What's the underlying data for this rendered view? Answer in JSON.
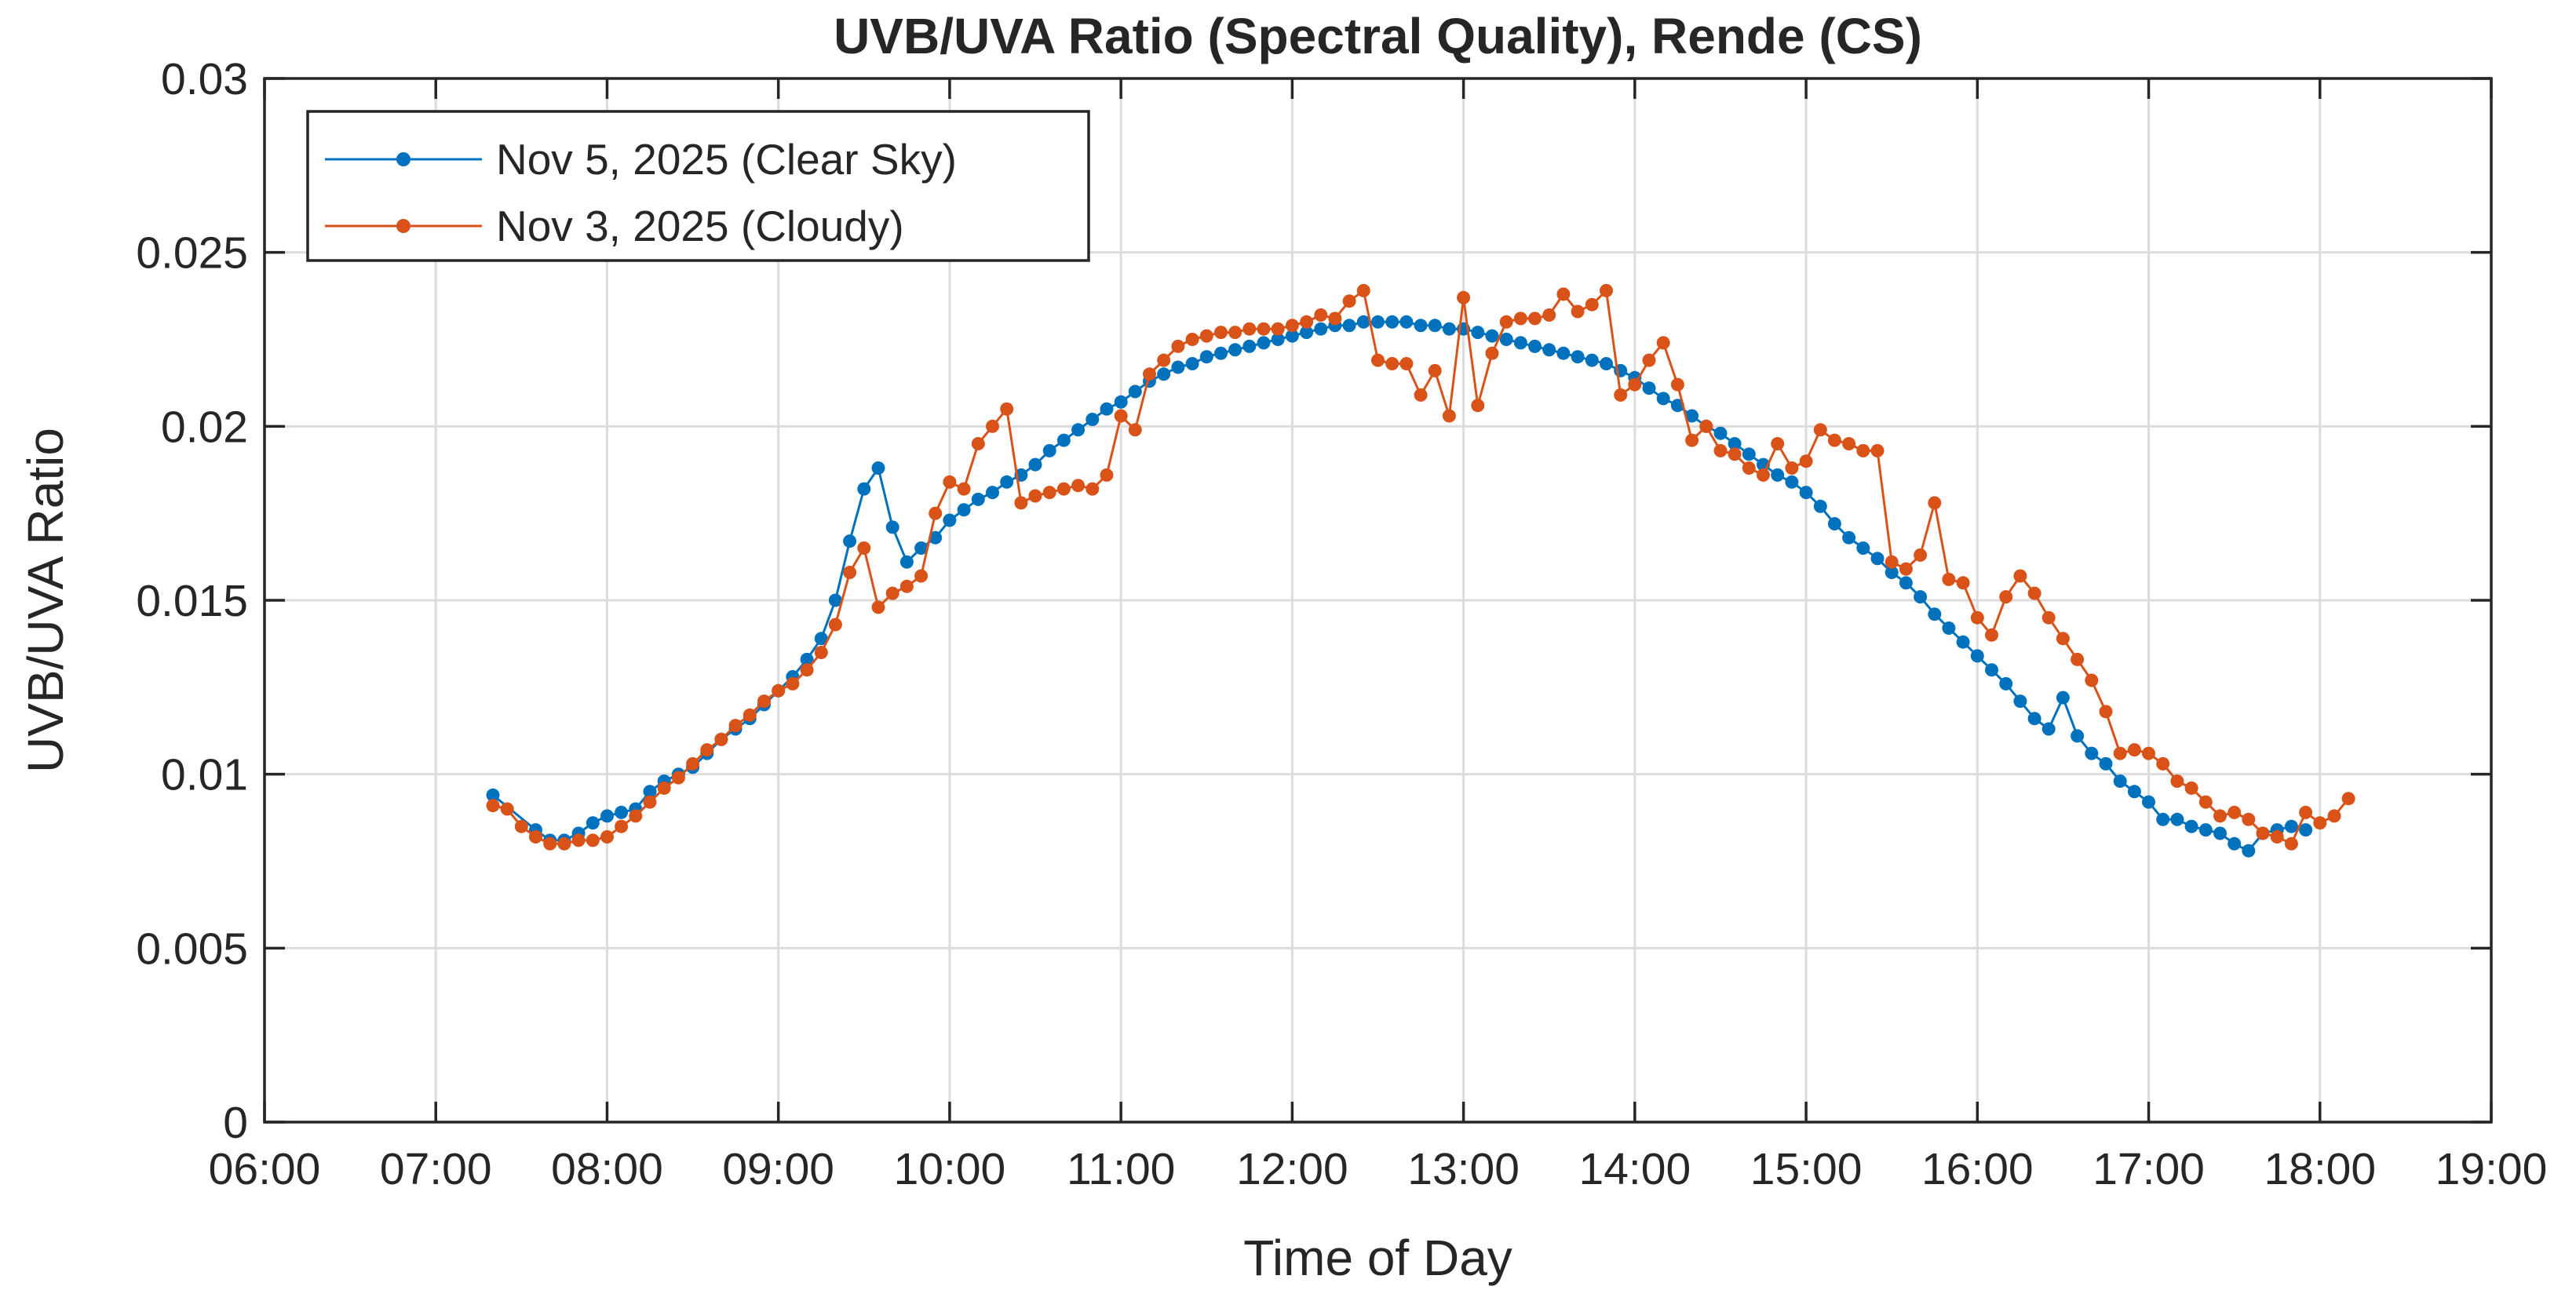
{
  "chart_data": {
    "type": "line",
    "title": "UVB/UVA Ratio (Spectral Quality), Rende (CS)",
    "xlabel": "Time of Day",
    "ylabel": "UVB/UVA Ratio",
    "xlim": [
      "06:00",
      "19:00"
    ],
    "ylim": [
      0,
      0.03
    ],
    "xticks": [
      "06:00",
      "07:00",
      "08:00",
      "09:00",
      "10:00",
      "11:00",
      "12:00",
      "13:00",
      "14:00",
      "15:00",
      "16:00",
      "17:00",
      "18:00",
      "19:00"
    ],
    "yticks": [
      "0",
      "0.005",
      "0.01",
      "0.015",
      "0.02",
      "0.025",
      "0.03"
    ],
    "grid": true,
    "legend_position": "top-left",
    "series": [
      {
        "name": "Nov 5, 2025 (Clear Sky)",
        "color": "#0072BD",
        "points": [
          [
            "07:20",
            0.0094
          ],
          [
            "07:35",
            0.0084
          ],
          [
            "07:40",
            0.0081
          ],
          [
            "07:45",
            0.0081
          ],
          [
            "07:50",
            0.0083
          ],
          [
            "07:55",
            0.0086
          ],
          [
            "08:00",
            0.0088
          ],
          [
            "08:05",
            0.0089
          ],
          [
            "08:10",
            0.009
          ],
          [
            "08:15",
            0.0095
          ],
          [
            "08:20",
            0.0098
          ],
          [
            "08:25",
            0.01
          ],
          [
            "08:30",
            0.0102
          ],
          [
            "08:35",
            0.0106
          ],
          [
            "08:40",
            0.011
          ],
          [
            "08:45",
            0.0113
          ],
          [
            "08:50",
            0.0116
          ],
          [
            "08:55",
            0.012
          ],
          [
            "09:00",
            0.0124
          ],
          [
            "09:05",
            0.0128
          ],
          [
            "09:10",
            0.0133
          ],
          [
            "09:15",
            0.0139
          ],
          [
            "09:20",
            0.015
          ],
          [
            "09:25",
            0.0167
          ],
          [
            "09:30",
            0.0182
          ],
          [
            "09:35",
            0.0188
          ],
          [
            "09:40",
            0.0171
          ],
          [
            "09:45",
            0.0161
          ],
          [
            "09:50",
            0.0165
          ],
          [
            "09:55",
            0.0168
          ],
          [
            "10:00",
            0.0173
          ],
          [
            "10:05",
            0.0176
          ],
          [
            "10:10",
            0.0179
          ],
          [
            "10:15",
            0.0181
          ],
          [
            "10:20",
            0.0184
          ],
          [
            "10:25",
            0.0186
          ],
          [
            "10:30",
            0.0189
          ],
          [
            "10:35",
            0.0193
          ],
          [
            "10:40",
            0.0196
          ],
          [
            "10:45",
            0.0199
          ],
          [
            "10:50",
            0.0202
          ],
          [
            "10:55",
            0.0205
          ],
          [
            "11:00",
            0.0207
          ],
          [
            "11:05",
            0.021
          ],
          [
            "11:10",
            0.0213
          ],
          [
            "11:15",
            0.0215
          ],
          [
            "11:20",
            0.0217
          ],
          [
            "11:25",
            0.0218
          ],
          [
            "11:30",
            0.022
          ],
          [
            "11:35",
            0.0221
          ],
          [
            "11:40",
            0.0222
          ],
          [
            "11:45",
            0.0223
          ],
          [
            "11:50",
            0.0224
          ],
          [
            "11:55",
            0.0225
          ],
          [
            "12:00",
            0.0226
          ],
          [
            "12:05",
            0.0227
          ],
          [
            "12:10",
            0.0228
          ],
          [
            "12:15",
            0.0229
          ],
          [
            "12:20",
            0.0229
          ],
          [
            "12:25",
            0.023
          ],
          [
            "12:30",
            0.023
          ],
          [
            "12:35",
            0.023
          ],
          [
            "12:40",
            0.023
          ],
          [
            "12:45",
            0.0229
          ],
          [
            "12:50",
            0.0229
          ],
          [
            "12:55",
            0.0228
          ],
          [
            "13:00",
            0.0228
          ],
          [
            "13:05",
            0.0227
          ],
          [
            "13:10",
            0.0226
          ],
          [
            "13:15",
            0.0225
          ],
          [
            "13:20",
            0.0224
          ],
          [
            "13:25",
            0.0223
          ],
          [
            "13:30",
            0.0222
          ],
          [
            "13:35",
            0.0221
          ],
          [
            "13:40",
            0.022
          ],
          [
            "13:45",
            0.0219
          ],
          [
            "13:50",
            0.0218
          ],
          [
            "13:55",
            0.0216
          ],
          [
            "14:00",
            0.0214
          ],
          [
            "14:05",
            0.0211
          ],
          [
            "14:10",
            0.0208
          ],
          [
            "14:15",
            0.0206
          ],
          [
            "14:20",
            0.0203
          ],
          [
            "14:25",
            0.02
          ],
          [
            "14:30",
            0.0198
          ],
          [
            "14:35",
            0.0195
          ],
          [
            "14:40",
            0.0192
          ],
          [
            "14:45",
            0.0189
          ],
          [
            "14:50",
            0.0186
          ],
          [
            "14:55",
            0.0184
          ],
          [
            "15:00",
            0.0181
          ],
          [
            "15:05",
            0.0177
          ],
          [
            "15:10",
            0.0172
          ],
          [
            "15:15",
            0.0168
          ],
          [
            "15:20",
            0.0165
          ],
          [
            "15:25",
            0.0162
          ],
          [
            "15:30",
            0.0158
          ],
          [
            "15:35",
            0.0155
          ],
          [
            "15:40",
            0.0151
          ],
          [
            "15:45",
            0.0146
          ],
          [
            "15:50",
            0.0142
          ],
          [
            "15:55",
            0.0138
          ],
          [
            "16:00",
            0.0134
          ],
          [
            "16:05",
            0.013
          ],
          [
            "16:10",
            0.0126
          ],
          [
            "16:15",
            0.0121
          ],
          [
            "16:20",
            0.0116
          ],
          [
            "16:25",
            0.0113
          ],
          [
            "16:30",
            0.0122
          ],
          [
            "16:35",
            0.0111
          ],
          [
            "16:40",
            0.0106
          ],
          [
            "16:45",
            0.0103
          ],
          [
            "16:50",
            0.0098
          ],
          [
            "16:55",
            0.0095
          ],
          [
            "17:00",
            0.0092
          ],
          [
            "17:05",
            0.0087
          ],
          [
            "17:10",
            0.0087
          ],
          [
            "17:15",
            0.0085
          ],
          [
            "17:20",
            0.0084
          ],
          [
            "17:25",
            0.0083
          ],
          [
            "17:30",
            0.008
          ],
          [
            "17:35",
            0.0078
          ],
          [
            "17:40",
            0.0083
          ],
          [
            "17:45",
            0.0084
          ],
          [
            "17:50",
            0.0085
          ],
          [
            "17:55",
            0.0084
          ]
        ]
      },
      {
        "name": "Nov 3, 2025 (Cloudy)",
        "color": "#D95319",
        "points": [
          [
            "07:20",
            0.0091
          ],
          [
            "07:25",
            0.009
          ],
          [
            "07:30",
            0.0085
          ],
          [
            "07:35",
            0.0082
          ],
          [
            "07:40",
            0.008
          ],
          [
            "07:45",
            0.008
          ],
          [
            "07:50",
            0.0081
          ],
          [
            "07:55",
            0.0081
          ],
          [
            "08:00",
            0.0082
          ],
          [
            "08:05",
            0.0085
          ],
          [
            "08:10",
            0.0088
          ],
          [
            "08:15",
            0.0092
          ],
          [
            "08:20",
            0.0096
          ],
          [
            "08:25",
            0.0099
          ],
          [
            "08:30",
            0.0103
          ],
          [
            "08:35",
            0.0107
          ],
          [
            "08:40",
            0.011
          ],
          [
            "08:45",
            0.0114
          ],
          [
            "08:50",
            0.0117
          ],
          [
            "08:55",
            0.0121
          ],
          [
            "09:00",
            0.0124
          ],
          [
            "09:05",
            0.0126
          ],
          [
            "09:10",
            0.013
          ],
          [
            "09:15",
            0.0135
          ],
          [
            "09:20",
            0.0143
          ],
          [
            "09:25",
            0.0158
          ],
          [
            "09:30",
            0.0165
          ],
          [
            "09:35",
            0.0148
          ],
          [
            "09:40",
            0.0152
          ],
          [
            "09:45",
            0.0154
          ],
          [
            "09:50",
            0.0157
          ],
          [
            "09:55",
            0.0175
          ],
          [
            "10:00",
            0.0184
          ],
          [
            "10:05",
            0.0182
          ],
          [
            "10:10",
            0.0195
          ],
          [
            "10:15",
            0.02
          ],
          [
            "10:20",
            0.0205
          ],
          [
            "10:25",
            0.0178
          ],
          [
            "10:30",
            0.018
          ],
          [
            "10:35",
            0.0181
          ],
          [
            "10:40",
            0.0182
          ],
          [
            "10:45",
            0.0183
          ],
          [
            "10:50",
            0.0182
          ],
          [
            "10:55",
            0.0186
          ],
          [
            "11:00",
            0.0203
          ],
          [
            "11:05",
            0.0199
          ],
          [
            "11:10",
            0.0215
          ],
          [
            "11:15",
            0.0219
          ],
          [
            "11:20",
            0.0223
          ],
          [
            "11:25",
            0.0225
          ],
          [
            "11:30",
            0.0226
          ],
          [
            "11:35",
            0.0227
          ],
          [
            "11:40",
            0.0227
          ],
          [
            "11:45",
            0.0228
          ],
          [
            "11:50",
            0.0228
          ],
          [
            "11:55",
            0.0228
          ],
          [
            "12:00",
            0.0229
          ],
          [
            "12:05",
            0.023
          ],
          [
            "12:10",
            0.0232
          ],
          [
            "12:15",
            0.0231
          ],
          [
            "12:20",
            0.0236
          ],
          [
            "12:25",
            0.0239
          ],
          [
            "12:30",
            0.0219
          ],
          [
            "12:35",
            0.0218
          ],
          [
            "12:40",
            0.0218
          ],
          [
            "12:45",
            0.0209
          ],
          [
            "12:50",
            0.0216
          ],
          [
            "12:55",
            0.0203
          ],
          [
            "13:00",
            0.0237
          ],
          [
            "13:05",
            0.0206
          ],
          [
            "13:10",
            0.0221
          ],
          [
            "13:15",
            0.023
          ],
          [
            "13:20",
            0.0231
          ],
          [
            "13:25",
            0.0231
          ],
          [
            "13:30",
            0.0232
          ],
          [
            "13:35",
            0.0238
          ],
          [
            "13:40",
            0.0233
          ],
          [
            "13:45",
            0.0235
          ],
          [
            "13:50",
            0.0239
          ],
          [
            "13:55",
            0.0209
          ],
          [
            "14:00",
            0.0212
          ],
          [
            "14:05",
            0.0219
          ],
          [
            "14:10",
            0.0224
          ],
          [
            "14:15",
            0.0212
          ],
          [
            "14:20",
            0.0196
          ],
          [
            "14:25",
            0.02
          ],
          [
            "14:30",
            0.0193
          ],
          [
            "14:35",
            0.0192
          ],
          [
            "14:40",
            0.0188
          ],
          [
            "14:45",
            0.0186
          ],
          [
            "14:50",
            0.0195
          ],
          [
            "14:55",
            0.0188
          ],
          [
            "15:00",
            0.019
          ],
          [
            "15:05",
            0.0199
          ],
          [
            "15:10",
            0.0196
          ],
          [
            "15:15",
            0.0195
          ],
          [
            "15:20",
            0.0193
          ],
          [
            "15:25",
            0.0193
          ],
          [
            "15:30",
            0.0161
          ],
          [
            "15:35",
            0.0159
          ],
          [
            "15:40",
            0.0163
          ],
          [
            "15:45",
            0.0178
          ],
          [
            "15:50",
            0.0156
          ],
          [
            "15:55",
            0.0155
          ],
          [
            "16:00",
            0.0145
          ],
          [
            "16:05",
            0.014
          ],
          [
            "16:10",
            0.0151
          ],
          [
            "16:15",
            0.0157
          ],
          [
            "16:20",
            0.0152
          ],
          [
            "16:25",
            0.0145
          ],
          [
            "16:30",
            0.0139
          ],
          [
            "16:35",
            0.0133
          ],
          [
            "16:40",
            0.0127
          ],
          [
            "16:45",
            0.0118
          ],
          [
            "16:50",
            0.0106
          ],
          [
            "16:55",
            0.0107
          ],
          [
            "17:00",
            0.0106
          ],
          [
            "17:05",
            0.0103
          ],
          [
            "17:10",
            0.0098
          ],
          [
            "17:15",
            0.0096
          ],
          [
            "17:20",
            0.0092
          ],
          [
            "17:25",
            0.0088
          ],
          [
            "17:30",
            0.0089
          ],
          [
            "17:35",
            0.0087
          ],
          [
            "17:40",
            0.0083
          ],
          [
            "17:45",
            0.0082
          ],
          [
            "17:50",
            0.008
          ],
          [
            "17:55",
            0.0089
          ],
          [
            "18:00",
            0.0086
          ],
          [
            "18:05",
            0.0088
          ],
          [
            "18:10",
            0.0093
          ]
        ]
      }
    ]
  }
}
